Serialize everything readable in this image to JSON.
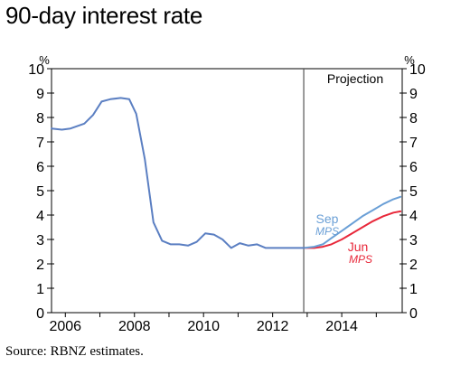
{
  "title": "90-day interest rate",
  "source": "Source: RBNZ estimates.",
  "chart_data": {
    "type": "line",
    "title": "90-day interest rate",
    "ylabel_left": "%",
    "ylabel_right": "%",
    "ylim": [
      0,
      10
    ],
    "yticks": [
      0,
      1,
      2,
      3,
      4,
      5,
      6,
      7,
      8,
      9,
      10
    ],
    "xlim": [
      2005.6,
      2015.75
    ],
    "xticks": [
      2006,
      2008,
      2010,
      2012,
      2014
    ],
    "xtick_labels": [
      "2006",
      "2008",
      "2010",
      "2012",
      "2014"
    ],
    "projection": {
      "x": 2012.9,
      "label": "Projection"
    },
    "grid": false,
    "series": [
      {
        "name": "historical",
        "color": "#5b7fc2",
        "x": [
          2005.6,
          2005.9,
          2006.15,
          2006.55,
          2006.8,
          2007.05,
          2007.3,
          2007.6,
          2007.85,
          2008.05,
          2008.3,
          2008.55,
          2008.8,
          2009.05,
          2009.3,
          2009.55,
          2009.8,
          2010.05,
          2010.3,
          2010.55,
          2010.8,
          2011.05,
          2011.3,
          2011.55,
          2011.8,
          2012.05,
          2012.3,
          2012.6,
          2012.9
        ],
        "y": [
          7.55,
          7.5,
          7.55,
          7.75,
          8.1,
          8.65,
          8.75,
          8.8,
          8.75,
          8.15,
          6.3,
          3.7,
          2.95,
          2.8,
          2.8,
          2.75,
          2.9,
          3.25,
          3.2,
          3.0,
          2.65,
          2.85,
          2.75,
          2.8,
          2.65,
          2.65,
          2.65,
          2.65,
          2.65
        ]
      },
      {
        "name": "Sep MPS",
        "label_line1": "Sep",
        "label_line2": "MPS",
        "color": "#6a9fd6",
        "x": [
          2012.9,
          2013.2,
          2013.45,
          2013.7,
          2014.0,
          2014.3,
          2014.6,
          2014.9,
          2015.2,
          2015.5,
          2015.7
        ],
        "y": [
          2.65,
          2.7,
          2.8,
          3.05,
          3.35,
          3.65,
          3.95,
          4.2,
          4.45,
          4.65,
          4.75
        ]
      },
      {
        "name": "Jun MPS",
        "label_line1": "Jun",
        "label_line2": "MPS",
        "color": "#e8283a",
        "x": [
          2012.9,
          2013.2,
          2013.45,
          2013.7,
          2014.0,
          2014.3,
          2014.6,
          2014.9,
          2015.2,
          2015.5,
          2015.7
        ],
        "y": [
          2.65,
          2.65,
          2.7,
          2.8,
          3.0,
          3.25,
          3.5,
          3.75,
          3.95,
          4.1,
          4.15
        ]
      }
    ]
  }
}
